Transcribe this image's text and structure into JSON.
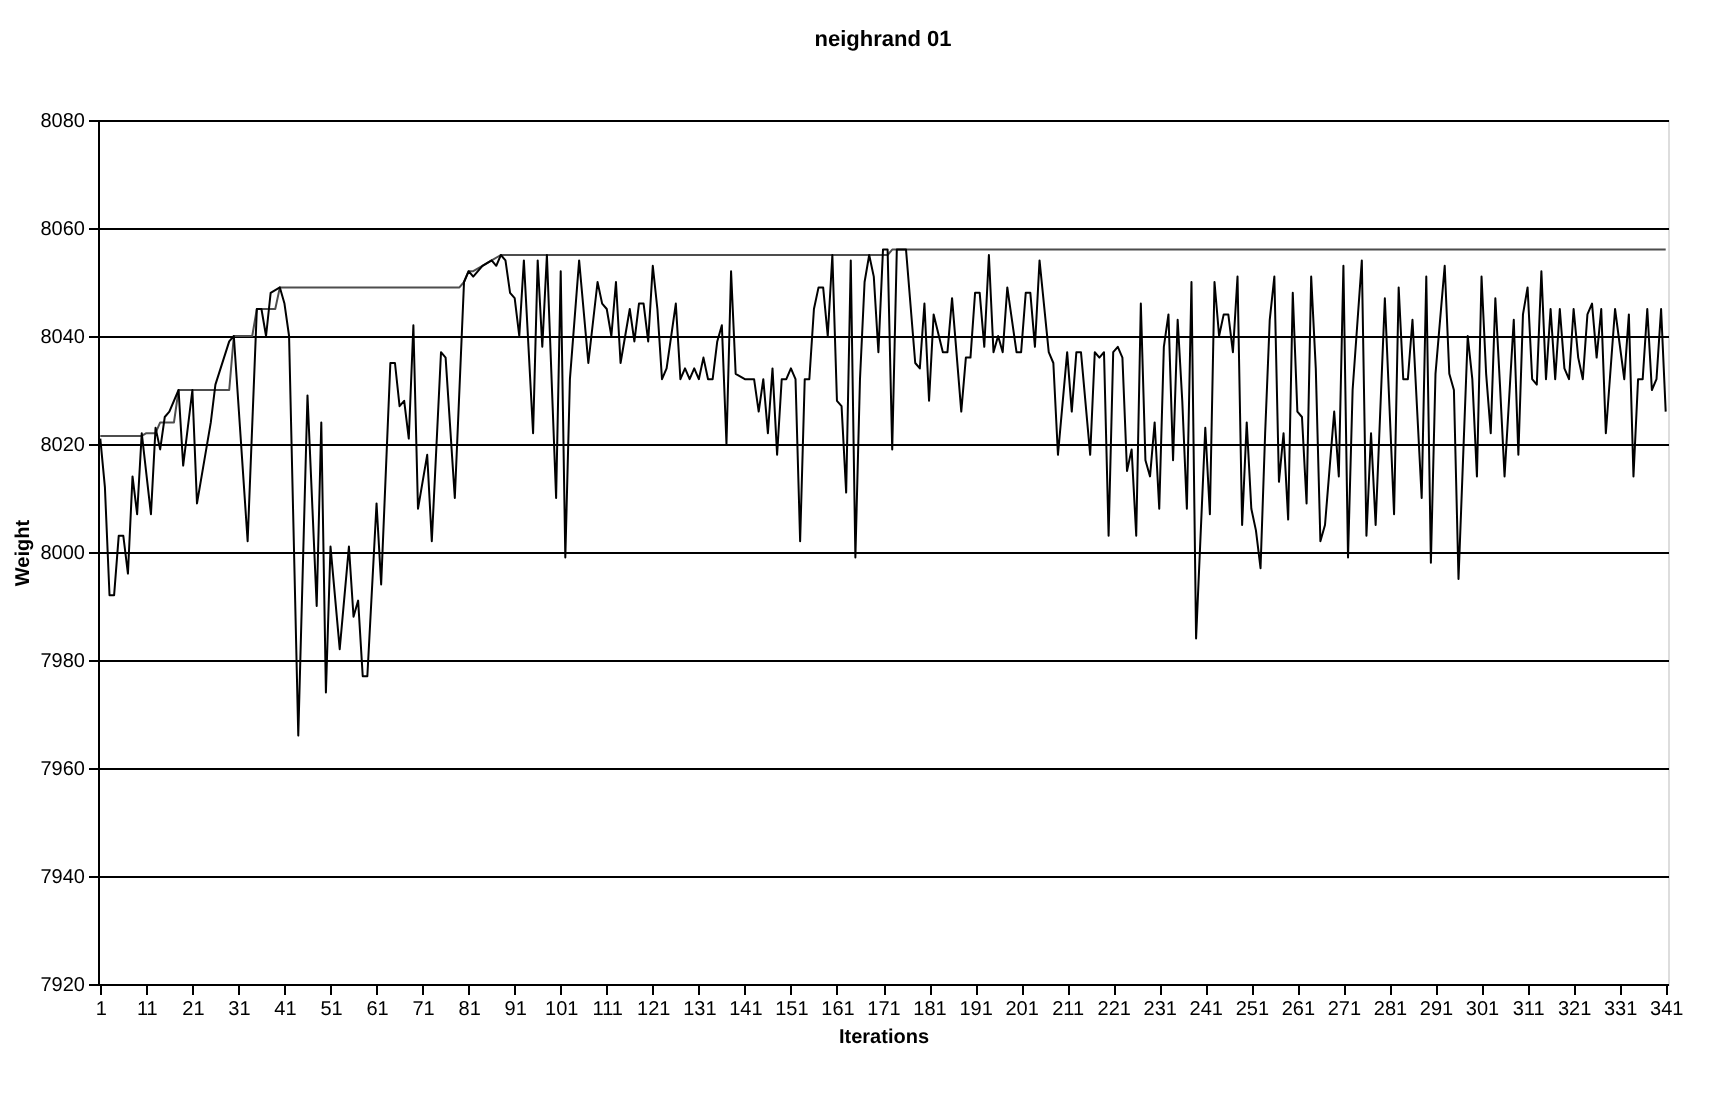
{
  "chart_data": {
    "type": "line",
    "title": "neighrand 01",
    "xlabel": "Iterations",
    "ylabel": "Weight",
    "xlim": [
      0.5,
      341.5
    ],
    "xticks": [
      1,
      11,
      21,
      31,
      41,
      51,
      61,
      71,
      81,
      91,
      101,
      111,
      121,
      131,
      141,
      151,
      161,
      171,
      181,
      191,
      201,
      211,
      221,
      231,
      241,
      251,
      261,
      271,
      281,
      291,
      301,
      311,
      321,
      331,
      341
    ],
    "ylim": [
      7920,
      8080
    ],
    "yticks": [
      7920,
      7940,
      7960,
      7980,
      8000,
      8020,
      8040,
      8060,
      8080
    ],
    "grid": "y",
    "series": [
      {
        "color": "#4d4d4d",
        "x": [
          1,
          10,
          11,
          13,
          14,
          17,
          18,
          29,
          30,
          34,
          35,
          39,
          40,
          79,
          80,
          81,
          82,
          84,
          86,
          88,
          172,
          173,
          341
        ],
        "values": [
          8021.5,
          8021.5,
          8022,
          8022,
          8024,
          8024,
          8030,
          8030,
          8040,
          8040,
          8045,
          8045,
          8049,
          8049,
          8050,
          8052,
          8052,
          8053,
          8054,
          8055,
          8055,
          8056,
          8056
        ]
      },
      {
        "color": "#000000",
        "x": [
          1,
          2,
          3,
          4,
          5,
          6,
          7,
          8,
          9,
          10,
          12,
          13,
          14,
          15,
          16,
          18,
          19,
          21,
          22,
          25,
          26,
          29,
          30,
          33,
          35,
          36,
          37,
          38,
          40,
          41,
          42,
          44,
          46,
          48,
          49,
          50,
          51,
          53,
          55,
          56,
          57,
          58,
          59,
          61,
          62,
          64,
          65,
          66,
          67,
          68,
          69,
          70,
          72,
          73,
          75,
          76,
          78,
          80,
          81,
          82,
          84,
          86,
          87,
          88,
          89,
          90,
          91,
          92,
          93,
          95,
          96,
          97,
          98,
          100,
          101,
          102,
          103,
          105,
          107,
          109,
          110,
          111,
          112,
          113,
          114,
          115,
          116,
          117,
          118,
          119,
          120,
          121,
          122,
          123,
          124,
          126,
          127,
          128,
          129,
          130,
          131,
          132,
          133,
          134,
          135,
          136,
          137,
          138,
          139,
          141,
          142,
          143,
          144,
          145,
          146,
          147,
          148,
          149,
          150,
          151,
          152,
          153,
          154,
          155,
          156,
          157,
          158,
          159,
          160,
          161,
          162,
          163,
          164,
          165,
          166,
          167,
          168,
          169,
          170,
          171,
          172,
          173,
          174,
          176,
          178,
          179,
          180,
          181,
          182,
          184,
          185,
          186,
          188,
          189,
          190,
          191,
          192,
          193,
          194,
          195,
          196,
          197,
          198,
          200,
          201,
          202,
          203,
          204,
          205,
          207,
          208,
          209,
          211,
          212,
          213,
          214,
          216,
          217,
          218,
          219,
          220,
          221,
          222,
          223,
          224,
          225,
          226,
          227,
          228,
          229,
          230,
          231,
          232,
          233,
          234,
          235,
          236,
          237,
          238,
          239,
          241,
          242,
          243,
          244,
          245,
          246,
          247,
          248,
          249,
          250,
          251,
          252,
          253,
          254,
          255,
          256,
          257,
          258,
          259,
          260,
          261,
          262,
          263,
          264,
          265,
          266,
          267,
          269,
          270,
          271,
          272,
          273,
          275,
          276,
          277,
          278,
          280,
          281,
          282,
          283,
          284,
          285,
          286,
          288,
          289,
          290,
          291,
          293,
          294,
          295,
          296,
          298,
          299,
          300,
          301,
          302,
          303,
          304,
          305,
          306,
          308,
          309,
          310,
          311,
          312,
          313,
          314,
          315,
          316,
          317,
          318,
          319,
          320,
          321,
          322,
          323,
          324,
          325,
          326,
          327,
          328,
          330,
          332,
          333,
          334,
          335,
          336,
          337,
          338,
          339,
          340,
          341
        ],
        "values": [
          8021,
          8012,
          7992,
          7992,
          8003,
          8003,
          7996,
          8014,
          8007,
          8022,
          8007,
          8023,
          8019,
          8025,
          8026,
          8030,
          8016,
          8030,
          8009,
          8024,
          8031,
          8039,
          8040,
          8002,
          8045,
          8045,
          8040,
          8048,
          8049,
          8046,
          8040,
          7966,
          8029,
          7990,
          8024,
          7974,
          8001,
          7982,
          8001,
          7988,
          7991,
          7977,
          7977,
          8009,
          7994,
          8035,
          8035,
          8027,
          8028,
          8021,
          8042,
          8008,
          8018,
          8002,
          8037,
          8036,
          8010,
          8050,
          8052,
          8051,
          8053,
          8054,
          8053,
          8055,
          8054,
          8048,
          8047,
          8040,
          8054,
          8022,
          8054,
          8038,
          8055,
          8010,
          8052,
          7999,
          8032,
          8054,
          8035,
          8050,
          8046,
          8045,
          8040,
          8050,
          8035,
          8040,
          8045,
          8039,
          8046,
          8046,
          8039,
          8053,
          8045,
          8032,
          8034,
          8046,
          8032,
          8034,
          8032,
          8034,
          8032,
          8036,
          8032,
          8032,
          8039,
          8042,
          8020,
          8052,
          8033,
          8032,
          8032,
          8032,
          8026,
          8032,
          8022,
          8034,
          8018,
          8032,
          8032,
          8034,
          8032,
          8002,
          8032,
          8032,
          8045,
          8049,
          8049,
          8040,
          8055,
          8028,
          8027,
          8011,
          8054,
          7999,
          8032,
          8050,
          8055,
          8051,
          8037,
          8056,
          8056,
          8019,
          8056,
          8056,
          8035,
          8034,
          8046,
          8028,
          8044,
          8037,
          8037,
          8047,
          8026,
          8036,
          8036,
          8048,
          8048,
          8038,
          8055,
          8037,
          8040,
          8037,
          8049,
          8037,
          8037,
          8048,
          8048,
          8038,
          8054,
          8037,
          8035,
          8018,
          8037,
          8026,
          8037,
          8037,
          8018,
          8037,
          8036,
          8037,
          8003,
          8037,
          8038,
          8036,
          8015,
          8019,
          8003,
          8046,
          8017,
          8014,
          8024,
          8008,
          8038,
          8044,
          8017,
          8043,
          8028,
          8008,
          8050,
          7984,
          8023,
          8007,
          8050,
          8040,
          8044,
          8044,
          8037,
          8051,
          8005,
          8024,
          8008,
          8004,
          7997,
          8022,
          8043,
          8051,
          8013,
          8022,
          8006,
          8048,
          8026,
          8025,
          8009,
          8051,
          8034,
          8002,
          8005,
          8026,
          8014,
          8053,
          7999,
          8030,
          8054,
          8003,
          8022,
          8005,
          8047,
          8027,
          8007,
          8049,
          8032,
          8032,
          8043,
          8010,
          8051,
          7998,
          8033,
          8053,
          8033,
          8030,
          7995,
          8040,
          8032,
          8014,
          8051,
          8033,
          8022,
          8047,
          8031,
          8014,
          8043,
          8018,
          8044,
          8049,
          8032,
          8031,
          8052,
          8032,
          8045,
          8032,
          8045,
          8034,
          8032,
          8045,
          8036,
          8032,
          8044,
          8046,
          8036,
          8045,
          8022,
          8045,
          8032,
          8044,
          8014,
          8032,
          8032,
          8045,
          8030,
          8032,
          8045,
          8026
        ]
      }
    ]
  }
}
